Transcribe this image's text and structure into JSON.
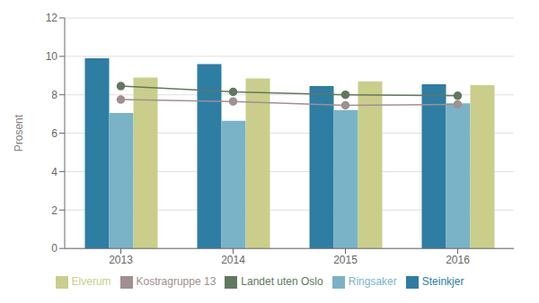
{
  "chart_data": {
    "type": "bar",
    "categories": [
      "2013",
      "2014",
      "2015",
      "2016"
    ],
    "ylabel": "Prosent",
    "ylim": [
      0,
      12
    ],
    "yticks": [
      0,
      2,
      4,
      6,
      8,
      10,
      12
    ],
    "grid": true,
    "legend": "bottom",
    "series": [
      {
        "name": "Steinkjer",
        "type": "bar",
        "color": "#2e7da3",
        "values": [
          9.9,
          9.6,
          8.45,
          8.55
        ]
      },
      {
        "name": "Ringsaker",
        "type": "bar",
        "color": "#7ab3c8",
        "values": [
          7.05,
          6.65,
          7.2,
          7.55
        ]
      },
      {
        "name": "Elverum",
        "type": "bar",
        "color": "#cace8a",
        "values": [
          8.9,
          8.85,
          8.7,
          8.5
        ]
      },
      {
        "name": "Landet uten Oslo",
        "type": "line",
        "color": "#607860",
        "marker": "circle",
        "line_style": "solid",
        "values": [
          8.45,
          8.15,
          8.0,
          7.95
        ]
      },
      {
        "name": "Kostragruppe 13",
        "type": "line",
        "color": "#a09090",
        "marker": "circle",
        "line_style": "solid",
        "values": [
          7.75,
          7.65,
          7.45,
          7.5
        ]
      }
    ]
  }
}
